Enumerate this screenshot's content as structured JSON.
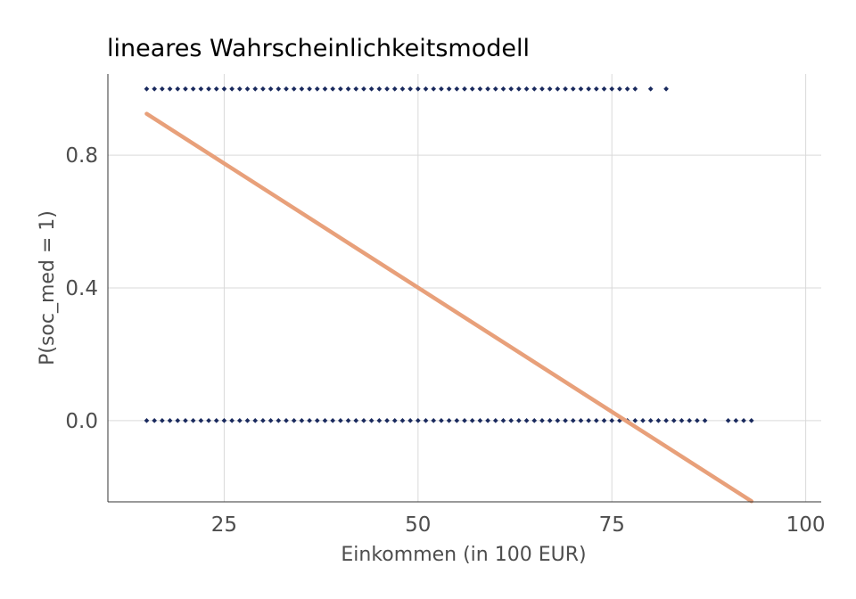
{
  "chart_data": {
    "type": "scatter",
    "title": "lineares Wahrscheinlichkeitsmodell",
    "xlabel": "Einkommen (in 100 EUR)",
    "ylabel": "P(soc_med = 1)",
    "xlim": [
      10,
      102
    ],
    "ylim": [
      -0.245,
      1.045
    ],
    "x_ticks": [
      25,
      50,
      75,
      100
    ],
    "y_ticks": [
      0.0,
      0.4,
      0.8
    ],
    "x_tick_labels": [
      "25",
      "50",
      "75",
      "100"
    ],
    "y_tick_labels": [
      "0.0",
      "0.4",
      "0.8"
    ],
    "grid": true,
    "colors": {
      "points": "#1a2a5e",
      "fit_line": "#e8a07a",
      "grid": "#d9d9d9",
      "axis": "#333333"
    },
    "series": [
      {
        "type": "scatter",
        "y": 1,
        "x": [
          15,
          16,
          17,
          18,
          19,
          20,
          21,
          22,
          23,
          24,
          25,
          26,
          27,
          28,
          29,
          30,
          31,
          32,
          33,
          34,
          35,
          36,
          37,
          38,
          39,
          40,
          41,
          42,
          43,
          44,
          45,
          46,
          47,
          48,
          49,
          50,
          51,
          52,
          53,
          54,
          55,
          56,
          57,
          58,
          59,
          60,
          61,
          62,
          63,
          64,
          65,
          66,
          67,
          68,
          69,
          70,
          71,
          72,
          73,
          74,
          75,
          76,
          77,
          78,
          80,
          82
        ]
      },
      {
        "type": "scatter",
        "y": 0,
        "x": [
          15,
          16,
          17,
          18,
          19,
          20,
          21,
          22,
          23,
          24,
          25,
          26,
          27,
          28,
          29,
          30,
          31,
          32,
          33,
          34,
          35,
          36,
          37,
          38,
          39,
          40,
          41,
          42,
          43,
          44,
          45,
          46,
          47,
          48,
          49,
          50,
          51,
          52,
          53,
          54,
          55,
          56,
          57,
          58,
          59,
          60,
          61,
          62,
          63,
          64,
          65,
          66,
          67,
          68,
          69,
          70,
          71,
          72,
          73,
          74,
          75,
          76,
          77,
          78,
          79,
          80,
          81,
          82,
          83,
          84,
          85,
          86,
          87,
          90,
          91,
          92,
          93
        ]
      },
      {
        "type": "line",
        "x": [
          15,
          93
        ],
        "y": [
          0.925,
          -0.243
        ]
      }
    ]
  }
}
